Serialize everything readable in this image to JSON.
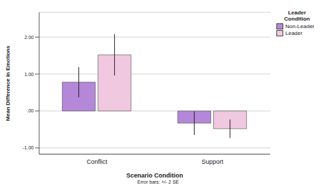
{
  "chart_data": {
    "type": "bar",
    "x_label": "Scenario Condition",
    "y_label": "Mean Difference in Emotions",
    "categories": [
      "Conflict",
      "Support"
    ],
    "series": [
      {
        "name": "Non-Leader",
        "color": "#b487d8",
        "values": [
          0.78,
          -0.33
        ],
        "error": [
          0.41,
          0.32
        ]
      },
      {
        "name": "Leader",
        "color": "#f0c8e0",
        "values": [
          1.52,
          -0.48
        ],
        "error": [
          0.56,
          0.25
        ]
      }
    ],
    "ylim": [
      -1.17,
      2.67
    ],
    "yticks": [
      {
        "value": -1,
        "label": "-1.00"
      },
      {
        "value": 0,
        "label": ".00"
      },
      {
        "value": 1,
        "label": "1.00"
      },
      {
        "value": 2,
        "label": "2.00"
      }
    ],
    "grid": true,
    "legend": "top right",
    "legend_title": "Leader Condition",
    "footnote": "Error bars: +/- 2 SE"
  }
}
